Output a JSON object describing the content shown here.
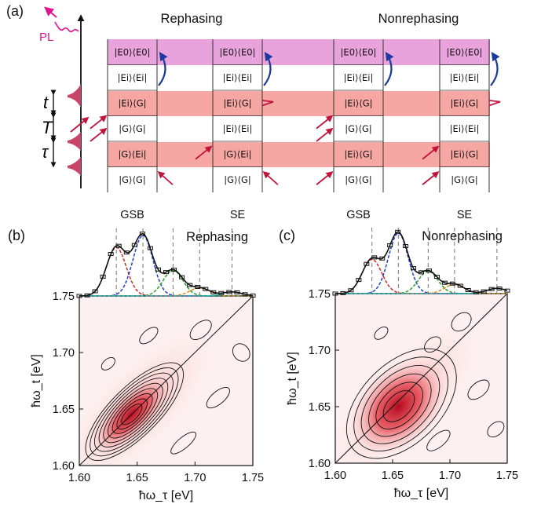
{
  "panel_a": {
    "label": "(a)",
    "pl_label": "PL",
    "time_labels": [
      "t",
      "T",
      "τ"
    ],
    "group_titles": [
      "Rephasing",
      "Nonrephasing"
    ],
    "columns": [
      {
        "type": "GSB",
        "states": [
          "|E0⟩⟨E0|",
          "|Ei⟩⟨Ei|",
          "|Ei⟩⟨G|",
          "|G⟩⟨G|",
          "|G⟩⟨Ei|",
          "|G⟩⟨G|"
        ]
      },
      {
        "type": "SE",
        "states": [
          "|E0⟩⟨E0|",
          "|Ei⟩⟨Ei|",
          "|Ei⟩⟨G|",
          "|Ei⟩⟨Ei|",
          "|G⟩⟨Ei|",
          "|G⟩⟨G|"
        ]
      },
      {
        "type": "GSB",
        "states": [
          "|E0⟩⟨E0|",
          "|Ei⟩⟨Ei|",
          "|Ei⟩⟨G|",
          "|G⟩⟨G|",
          "|Ei⟩⟨G|",
          "|G⟩⟨G|"
        ]
      },
      {
        "type": "SE",
        "states": [
          "|E0⟩⟨E0|",
          "|Ei⟩⟨Ei|",
          "|Ei⟩⟨G|",
          "|Ei⟩⟨Ei|",
          "|Ei⟩⟨G|",
          "|G⟩⟨G|"
        ]
      }
    ],
    "colors": {
      "top_band": "#e8a2dc",
      "red_band": "#f6a7a3",
      "arrow": "#c0143c",
      "relax_arrow": "#1c3a9e",
      "pulse": "#c94468",
      "pl": "#e0158f"
    }
  },
  "chart_data": [
    {
      "type": "heatmap",
      "panel": "(b)",
      "title": "Rephasing",
      "xlabel": "ħω_τ [eV]",
      "ylabel": "ħω_t [eV]",
      "xlim": [
        1.6,
        1.75
      ],
      "ylim": [
        1.6,
        1.75
      ],
      "xticks": [
        "1.60",
        "1.65",
        "1.70",
        "1.75"
      ],
      "yticks": [
        "1.60",
        "1.65",
        "1.70",
        "1.75"
      ],
      "peak": {
        "x": 1.645,
        "y": 1.645
      },
      "diagonal": true,
      "spectrum": {
        "lines_at": [
          1.632,
          1.655,
          1.681,
          1.704,
          1.732
        ],
        "components": [
          {
            "center": 1.632,
            "amplitude": 0.72,
            "color": "#d62728"
          },
          {
            "center": 1.655,
            "amplitude": 0.9,
            "color": "#1f3fd6"
          },
          {
            "center": 1.681,
            "amplitude": 0.38,
            "color": "#2ca02c"
          },
          {
            "center": 1.704,
            "amplitude": 0.12,
            "color": "#d98c1a"
          },
          {
            "center": 1.732,
            "amplitude": 0.06,
            "color": "#17becf"
          }
        ],
        "baseline_color": "#17becf"
      }
    },
    {
      "type": "heatmap",
      "panel": "(c)",
      "title": "Nonrephasing",
      "xlabel": "ħω_τ [eV]",
      "ylabel": "ħω_t [eV]",
      "xlim": [
        1.6,
        1.75
      ],
      "ylim": [
        1.6,
        1.75
      ],
      "xticks": [
        "1.60",
        "1.65",
        "1.70",
        "1.75"
      ],
      "yticks": [
        "1.60",
        "1.65",
        "1.70",
        "1.75"
      ],
      "peak": {
        "x": 1.655,
        "y": 1.65
      },
      "diagonal": true,
      "spectrum": {
        "lines_at": [
          1.632,
          1.655,
          1.681,
          1.704,
          1.741
        ],
        "components": [
          {
            "center": 1.632,
            "amplitude": 0.52,
            "color": "#d62728"
          },
          {
            "center": 1.655,
            "amplitude": 0.92,
            "color": "#1f3fd6"
          },
          {
            "center": 1.681,
            "amplitude": 0.34,
            "color": "#2ca02c"
          },
          {
            "center": 1.704,
            "amplitude": 0.14,
            "color": "#d98c1a"
          },
          {
            "center": 1.741,
            "amplitude": 0.08,
            "color": "#17becf"
          }
        ],
        "baseline_color": "#17becf"
      }
    }
  ]
}
